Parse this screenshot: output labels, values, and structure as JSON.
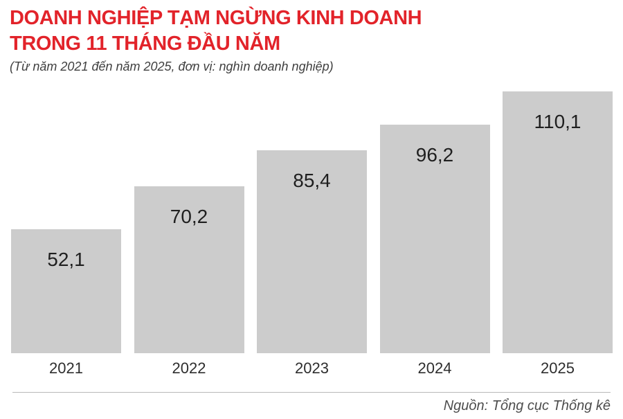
{
  "header": {
    "title_line1": "DOANH NGHIỆP TẠM NGỪNG KINH DOANH",
    "title_line2": "TRONG 11 THÁNG ĐẦU NĂM",
    "subtitle": "(Từ năm 2021 đến năm 2025, đơn vị: nghìn doanh nghiệp)"
  },
  "chart_data": {
    "type": "bar",
    "title": "DOANH NGHIỆP TẠM NGỪNG KINH DOANH TRONG 11 THÁNG ĐẦU NĂM",
    "subtitle": "(Từ năm 2021 đến năm 2025, đơn vị: nghìn doanh nghiệp)",
    "categories": [
      "2021",
      "2022",
      "2023",
      "2024",
      "2025"
    ],
    "values": [
      52.1,
      70.2,
      85.4,
      96.2,
      110.1
    ],
    "value_labels": [
      "52,1",
      "70,2",
      "85,4",
      "96,2",
      "110,1"
    ],
    "unit": "nghìn doanh nghiệp",
    "xlabel": "",
    "ylabel": "",
    "ylim": [
      0,
      110.1
    ],
    "grid": false,
    "legend": false
  },
  "footer": {
    "source": "Nguồn: Tổng cục Thống kê"
  },
  "colors": {
    "title_red": "#e2232a",
    "bar_gray": "#cccccc",
    "value_label": "#1f1f1f",
    "year_label": "#2e2e2e",
    "divider_gray": "#b9b9b9",
    "source_gray": "#4d4d4d"
  }
}
